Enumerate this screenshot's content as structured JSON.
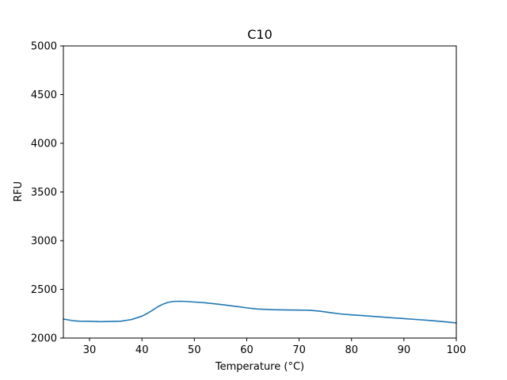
{
  "chart_data": {
    "type": "line",
    "title": "C10",
    "xlabel": "Temperature (°C)",
    "ylabel": "RFU",
    "xlim": [
      25,
      100
    ],
    "ylim": [
      2000,
      5000
    ],
    "xticks": [
      30,
      40,
      50,
      60,
      70,
      80,
      90,
      100
    ],
    "yticks": [
      2000,
      2500,
      3000,
      3500,
      4000,
      4500,
      5000
    ],
    "grid": false,
    "series": [
      {
        "color": "#1f77b4",
        "x": [
          25,
          26,
          27,
          28,
          30,
          32,
          34,
          36,
          38,
          40,
          41,
          42,
          43,
          44,
          45,
          46,
          47,
          48,
          50,
          52,
          55,
          58,
          60,
          62,
          65,
          68,
          70,
          72,
          74,
          76,
          78,
          80,
          82,
          85,
          88,
          90,
          92,
          95,
          98,
          100
        ],
        "y": [
          2195,
          2186,
          2177,
          2173,
          2172,
          2168,
          2170,
          2173,
          2190,
          2225,
          2252,
          2285,
          2320,
          2348,
          2367,
          2376,
          2378,
          2377,
          2370,
          2362,
          2345,
          2325,
          2310,
          2298,
          2291,
          2288,
          2287,
          2285,
          2276,
          2261,
          2247,
          2238,
          2231,
          2219,
          2207,
          2200,
          2192,
          2180,
          2166,
          2155
        ]
      }
    ]
  }
}
